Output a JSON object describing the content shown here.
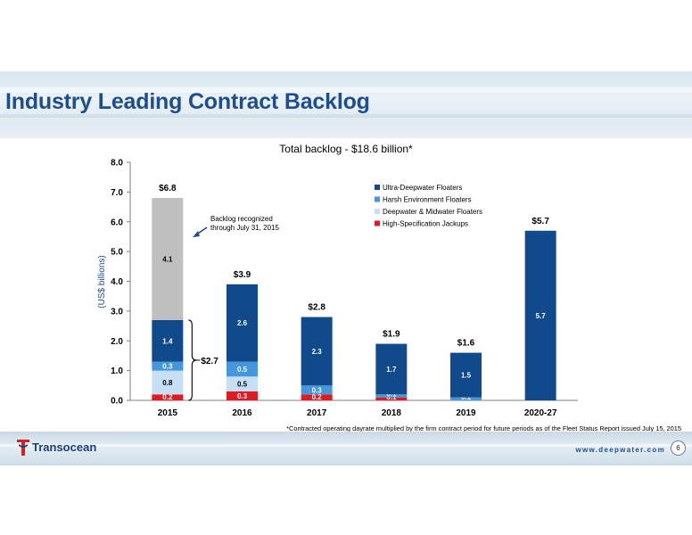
{
  "slide": {
    "title": "Industry Leading Contract Backlog",
    "logo_text": "Transocean",
    "website": "www.deepwater.com",
    "page_number": "6",
    "footnote": "*Contracted operating dayrate multiplied by the firm contract period for future periods as of the Fleet Status Report issued July 15, 2015"
  },
  "colors": {
    "title": "#1f4e8c",
    "ultra_deepwater": "#114a8b",
    "harsh_environment": "#4596dc",
    "deepwater_midwater": "#c6dff4",
    "jackups": "#e01a22",
    "recognized": "#bfbfbf"
  },
  "chart_data": {
    "type": "bar",
    "title": "Total backlog - $18.6 billion*",
    "ylabel": "(US$ billions)",
    "ylim": [
      0,
      8
    ],
    "yticks": [
      "0.0",
      "1.0",
      "2.0",
      "3.0",
      "4.0",
      "5.0",
      "6.0",
      "7.0",
      "8.0"
    ],
    "categories": [
      "2015",
      "2016",
      "2017",
      "2018",
      "2019",
      "2020-27"
    ],
    "totals": [
      "$6.8",
      "$3.9",
      "$2.8",
      "$1.9",
      "$1.6",
      "$5.7"
    ],
    "series": [
      {
        "name": "High-Specification Jackups",
        "color_key": "jackups",
        "values": [
          0.2,
          0.3,
          0.2,
          0.1,
          0.0,
          0.0
        ],
        "labels": [
          "0.2",
          "0.3",
          "0.2",
          "0.1",
          "",
          ""
        ]
      },
      {
        "name": "Deepwater & Midwater Floaters",
        "color_key": "deepwater_midwater",
        "values": [
          0.8,
          0.5,
          0.0,
          0.0,
          0.0,
          0.0
        ],
        "labels": [
          "0.8",
          "0.5",
          "",
          "",
          "",
          ""
        ]
      },
      {
        "name": "Harsh Environment Floaters",
        "color_key": "harsh_environment",
        "values": [
          0.3,
          0.5,
          0.3,
          0.1,
          0.1,
          0.0
        ],
        "labels": [
          "0.3",
          "0.5",
          "0.3",
          "0.1",
          "0.1",
          ""
        ]
      },
      {
        "name": "Ultra-Deepwater Floaters",
        "color_key": "ultra_deepwater",
        "values": [
          1.4,
          2.6,
          2.3,
          1.7,
          1.5,
          5.7
        ],
        "labels": [
          "1.4",
          "2.6",
          "2.3",
          "1.7",
          "1.5",
          "5.7"
        ]
      }
    ],
    "recognized_segment": {
      "category": "2015",
      "value": 4.1,
      "label": "4.1",
      "color_key": "recognized"
    },
    "annotation": {
      "text_lines": [
        "Backlog recognized",
        "through July 31, 2015"
      ]
    },
    "bracket_label": "$2.7",
    "legend_order": [
      "Ultra-Deepwater Floaters",
      "Harsh Environment Floaters",
      "Deepwater & Midwater Floaters",
      "High-Specification Jackups"
    ],
    "legend_position": "top-right",
    "grid": false
  }
}
